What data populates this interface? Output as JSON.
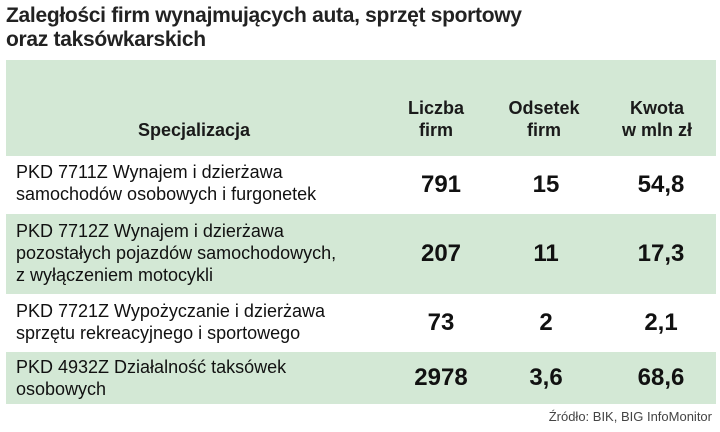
{
  "title": [
    "Zaległości firm wynajmujących auta, sprzęt sportowy",
    "oraz taksówkarskich"
  ],
  "headers": {
    "specialization": "Specjalizacja",
    "count": [
      "Liczba",
      "firm"
    ],
    "percent": [
      "Odsetek",
      "firm"
    ],
    "amount": [
      "Kwota",
      "w mln zł"
    ]
  },
  "rows": [
    {
      "desc": [
        "PKD 7711Z Wynajem i dzierżawa",
        "samochodów osobowych i furgonetek"
      ],
      "count": "791",
      "percent": "15",
      "amount": "54,8"
    },
    {
      "desc": [
        "PKD 7712Z Wynajem i dzierżawa",
        "pozostałych pojazdów samochodowych,",
        "z wyłączeniem motocykli"
      ],
      "count": "207",
      "percent": "11",
      "amount": "17,3"
    },
    {
      "desc": [
        "PKD 7721Z Wypożyczanie i dzierżawa",
        "sprzętu rekreacyjnego i sportowego"
      ],
      "count": "73",
      "percent": "2",
      "amount": "2,1"
    },
    {
      "desc": [
        "PKD 4932Z Działalność taksówek",
        "osobowych"
      ],
      "count": "2978",
      "percent": "3,6",
      "amount": "68,6"
    }
  ],
  "source": "Źródło: BIK, BIG InfoMonitor",
  "colors": {
    "band": "#d3e8d5",
    "background": "#ffffff",
    "text": "#1a1a1a"
  }
}
